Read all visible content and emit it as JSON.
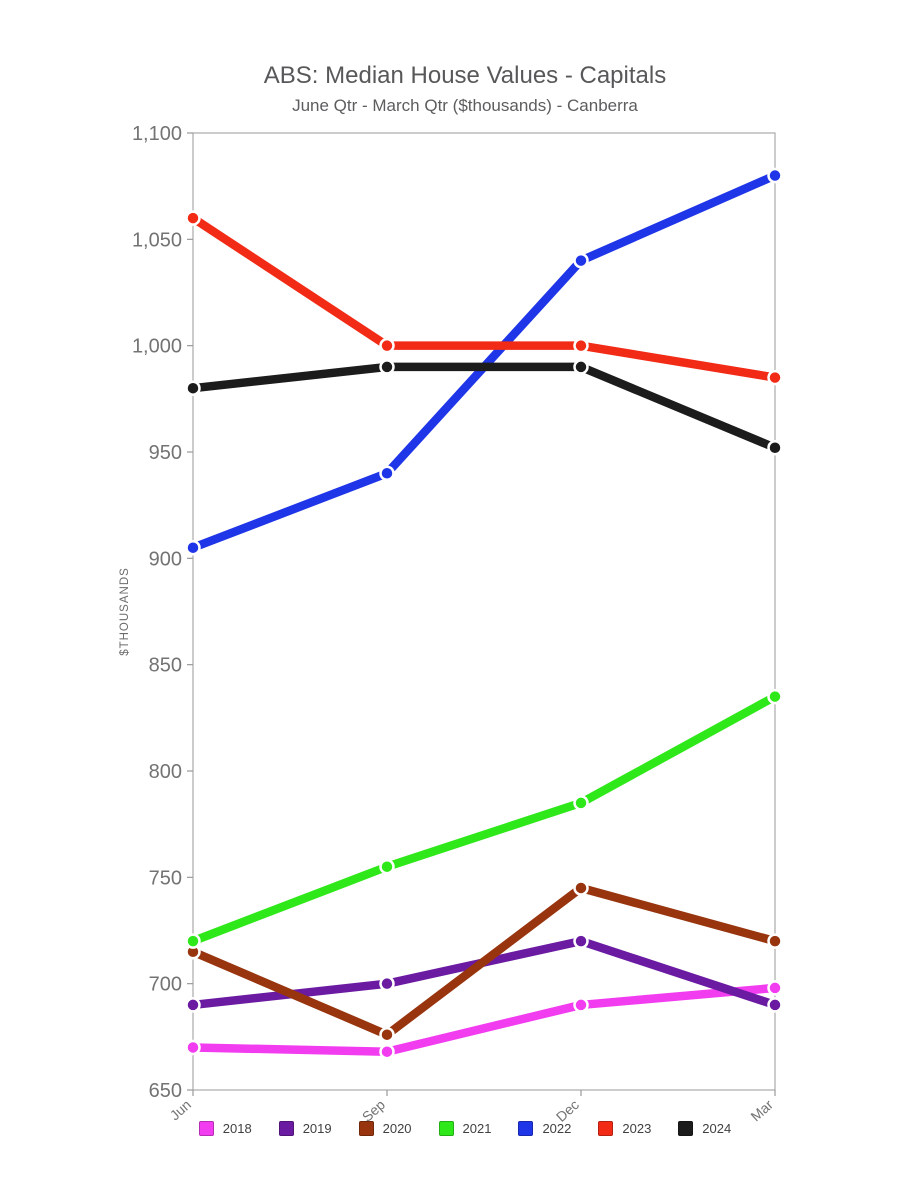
{
  "chart_data": {
    "type": "line",
    "title": "ABS: Median House Values - Capitals",
    "subtitle": "June Qtr - March Qtr ($thousands) - Canberra",
    "ylabel": "$THOUSANDS",
    "xlabel": "",
    "categories": [
      "Jun",
      "Sep",
      "Dec",
      "Mar"
    ],
    "series": [
      {
        "name": "2018",
        "color": "#f23cf0",
        "values": [
          670,
          668,
          690,
          698
        ]
      },
      {
        "name": "2019",
        "color": "#6b1ba1",
        "values": [
          690,
          700,
          720,
          690
        ]
      },
      {
        "name": "2020",
        "color": "#98350f",
        "values": [
          715,
          676,
          745,
          720
        ]
      },
      {
        "name": "2021",
        "color": "#2fe81a",
        "values": [
          720,
          755,
          785,
          835
        ]
      },
      {
        "name": "2022",
        "color": "#1f35e8",
        "values": [
          905,
          940,
          1040,
          1080
        ]
      },
      {
        "name": "2023",
        "color": "#f22b16",
        "values": [
          1060,
          1000,
          1000,
          985
        ]
      },
      {
        "name": "2024",
        "color": "#1c1c1c",
        "values": [
          980,
          990,
          990,
          952
        ]
      }
    ],
    "ylim": [
      650,
      1100
    ],
    "yticks": [
      {
        "value": 650,
        "label": "650"
      },
      {
        "value": 700,
        "label": "700"
      },
      {
        "value": 750,
        "label": "750"
      },
      {
        "value": 800,
        "label": "800"
      },
      {
        "value": 850,
        "label": "850"
      },
      {
        "value": 900,
        "label": "900"
      },
      {
        "value": 950,
        "label": "950"
      },
      {
        "value": 1000,
        "label": "1,000"
      },
      {
        "value": 1050,
        "label": "1,050"
      },
      {
        "value": 1100,
        "label": "1,100"
      }
    ],
    "grid": false,
    "legend_position": "bottom"
  }
}
